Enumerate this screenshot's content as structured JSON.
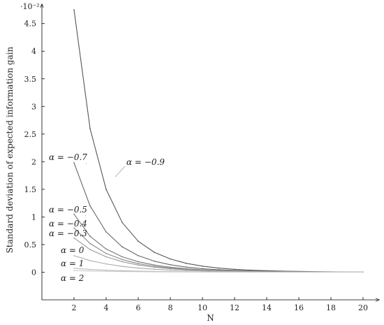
{
  "chart_data": {
    "type": "line",
    "title": "",
    "xlabel": "N",
    "ylabel": "Standard deviation of expected information gain",
    "y_scale_label": "·10⁻²",
    "xlim": [
      0,
      21
    ],
    "ylim": [
      -0.5,
      4.8
    ],
    "grid": false,
    "x_ticks": [
      2,
      4,
      6,
      8,
      10,
      12,
      14,
      16,
      18,
      20
    ],
    "y_ticks": [
      0,
      0.5,
      1,
      1.5,
      2,
      2.5,
      3,
      3.5,
      4,
      4.5
    ],
    "y_tick_labels": [
      "0",
      "0.5",
      "1",
      "1.5",
      "2",
      "2.5",
      "3",
      "3.5",
      "4",
      "4.5"
    ],
    "x": [
      2,
      3,
      4,
      5,
      6,
      7,
      8,
      9,
      10,
      11,
      12,
      13,
      14,
      15,
      16,
      17,
      18,
      19,
      20
    ],
    "series": [
      {
        "name": "α = −0.9",
        "color": "#555555",
        "values": [
          4.75,
          2.6,
          1.5,
          0.9,
          0.56,
          0.36,
          0.24,
          0.16,
          0.11,
          0.075,
          0.052,
          0.037,
          0.027,
          0.019,
          0.014,
          0.01,
          0.007,
          0.005,
          0.004
        ]
      },
      {
        "name": "α = −0.7",
        "color": "#666666",
        "values": [
          1.98,
          1.2,
          0.73,
          0.46,
          0.3,
          0.2,
          0.135,
          0.092,
          0.064,
          0.045,
          0.032,
          0.023,
          0.016,
          0.012,
          0.009,
          0.006,
          0.005,
          0.004,
          0.003
        ]
      },
      {
        "name": "α = −0.5",
        "color": "#777777",
        "values": [
          1.05,
          0.65,
          0.42,
          0.28,
          0.19,
          0.13,
          0.09,
          0.062,
          0.044,
          0.031,
          0.022,
          0.016,
          0.012,
          0.009,
          0.006,
          0.005,
          0.004,
          0.003,
          0.002
        ]
      },
      {
        "name": "α = −0.4",
        "color": "#888888",
        "values": [
          0.8,
          0.52,
          0.34,
          0.23,
          0.155,
          0.107,
          0.075,
          0.053,
          0.038,
          0.027,
          0.019,
          0.014,
          0.01,
          0.008,
          0.006,
          0.004,
          0.003,
          0.002,
          0.002
        ]
      },
      {
        "name": "α = −0.3",
        "color": "#999999",
        "values": [
          0.62,
          0.41,
          0.28,
          0.19,
          0.13,
          0.09,
          0.063,
          0.045,
          0.032,
          0.023,
          0.017,
          0.012,
          0.009,
          0.007,
          0.005,
          0.004,
          0.003,
          0.002,
          0.002
        ]
      },
      {
        "name": "α = 0",
        "color": "#aaaaaa",
        "values": [
          0.3,
          0.21,
          0.15,
          0.105,
          0.075,
          0.054,
          0.039,
          0.029,
          0.021,
          0.016,
          0.012,
          0.009,
          0.007,
          0.005,
          0.004,
          0.003,
          0.002,
          0.002,
          0.001
        ]
      },
      {
        "name": "α = 1",
        "color": "#bbbbbb",
        "values": [
          0.07,
          0.05,
          0.037,
          0.027,
          0.02,
          0.015,
          0.011,
          0.008,
          0.006,
          0.005,
          0.004,
          0.003,
          0.002,
          0.002,
          0.001,
          0.001,
          0.001,
          0.001,
          0.0
        ]
      },
      {
        "name": "α = 2",
        "color": "#cccccc",
        "values": [
          0.03,
          0.022,
          0.016,
          0.012,
          0.009,
          0.007,
          0.005,
          0.004,
          0.003,
          0.002,
          0.002,
          0.001,
          0.001,
          0.001,
          0.001,
          0.0,
          0.0,
          0.0,
          0.0
        ]
      }
    ],
    "annotations": [
      {
        "text": "α = −0.9"
      },
      {
        "text": "α = −0.7"
      },
      {
        "text": "α = −0.5"
      },
      {
        "text": "α = −0.4"
      },
      {
        "text": "α = −0.3"
      },
      {
        "text": "α = 0"
      },
      {
        "text": "α = 1"
      },
      {
        "text": "α = 2"
      }
    ]
  }
}
